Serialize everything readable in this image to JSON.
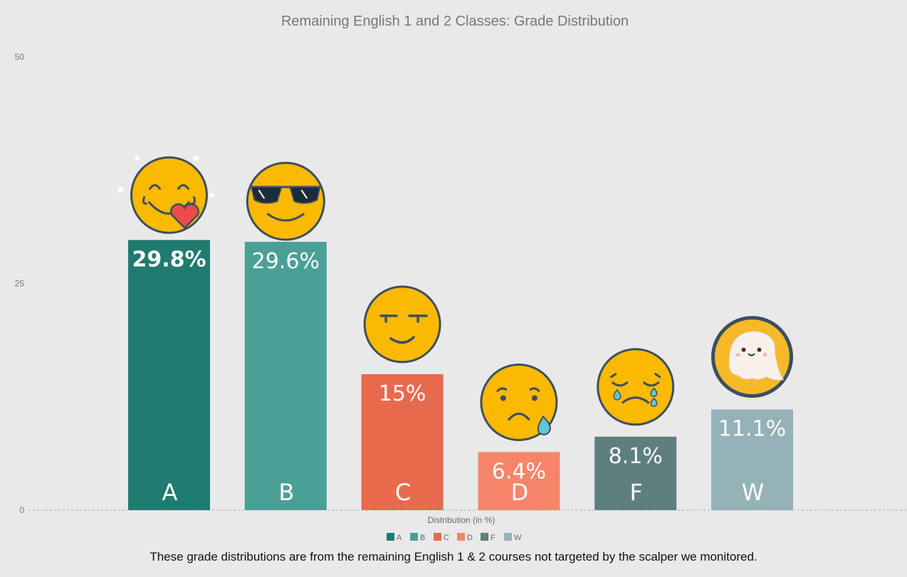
{
  "chart_data": {
    "type": "bar",
    "title": "Remaining English 1 and 2 Classes: Grade Distribution",
    "xlabel": "Distribution (in %)",
    "ylabel": "",
    "ylim": [
      0,
      50
    ],
    "yticks": [
      "0",
      "25",
      "50"
    ],
    "categories": [
      "A",
      "B",
      "C",
      "D",
      "F",
      "W"
    ],
    "values": [
      29.8,
      29.6,
      15,
      6.4,
      8.1,
      11.1
    ],
    "value_labels": [
      "29.8%",
      "29.6%",
      "15%",
      "6.4%",
      "8.1%",
      "11.1%"
    ],
    "colors": [
      "#1f7a6f",
      "#4aa096",
      "#e86a4d",
      "#f7856a",
      "#5e7e80",
      "#94b2b7"
    ],
    "emoji": [
      "star-struck-heart-icon",
      "sunglasses-icon",
      "smirk-icon",
      "sad-sweat-icon",
      "crying-icon",
      "ghost-icon"
    ],
    "legend": [
      "A",
      "B",
      "C",
      "D",
      "F",
      "W"
    ],
    "legend_position": "bottom",
    "grid": false
  },
  "caption": "These grade distributions are from the remaining English 1 & 2 courses not targeted by the scalper we monitored."
}
